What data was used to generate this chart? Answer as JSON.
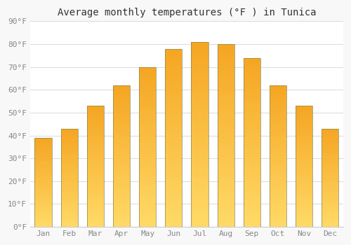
{
  "title": "Average monthly temperatures (°F ) in Tunica",
  "months": [
    "Jan",
    "Feb",
    "Mar",
    "Apr",
    "May",
    "Jun",
    "Jul",
    "Aug",
    "Sep",
    "Oct",
    "Nov",
    "Dec"
  ],
  "values": [
    39,
    43,
    53,
    62,
    70,
    78,
    81,
    80,
    74,
    62,
    53,
    43
  ],
  "bar_color_top": "#F5A623",
  "bar_color_bottom": "#FFD966",
  "bar_edge_color": "#888855",
  "background_color": "#f8f8f8",
  "plot_bg_color": "#ffffff",
  "grid_color": "#dddddd",
  "ylim": [
    0,
    90
  ],
  "yticks": [
    0,
    10,
    20,
    30,
    40,
    50,
    60,
    70,
    80,
    90
  ],
  "ytick_labels": [
    "0°F",
    "10°F",
    "20°F",
    "30°F",
    "40°F",
    "50°F",
    "60°F",
    "70°F",
    "80°F",
    "90°F"
  ],
  "tick_color": "#888888",
  "title_fontsize": 10,
  "tick_fontsize": 8,
  "bar_width": 0.65,
  "n_gradient_steps": 50
}
